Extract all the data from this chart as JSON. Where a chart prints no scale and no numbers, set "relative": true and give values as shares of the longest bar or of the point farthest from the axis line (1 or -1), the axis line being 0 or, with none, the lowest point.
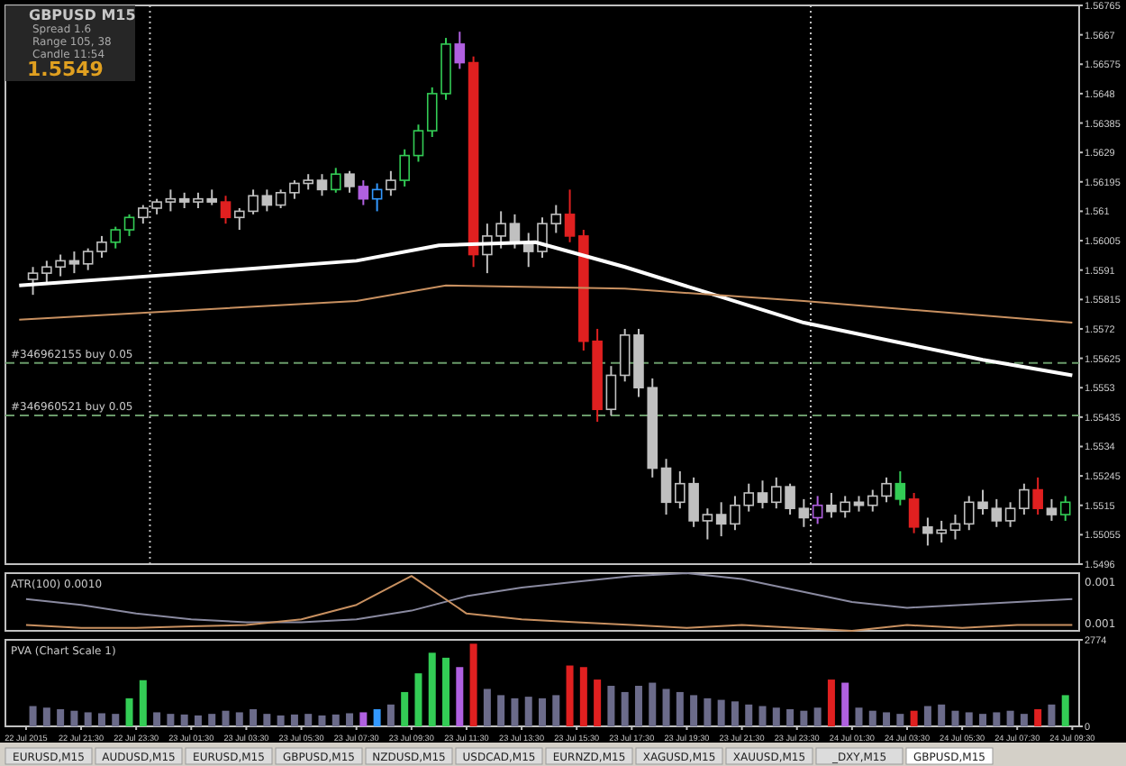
{
  "chart_data": [
    {
      "type": "candlestick",
      "xlim": [
        "2015-07-22T18:45",
        "2015-07-24T09:45"
      ],
      "ylim": [
        1.5496,
        1.56765
      ],
      "yticks": [
        1.56765,
        1.5667,
        1.56575,
        1.5648,
        1.56385,
        1.5629,
        1.56195,
        1.561,
        1.56005,
        1.5591,
        1.55815,
        1.5572,
        1.55625,
        1.5553,
        1.55435,
        1.5534,
        1.55245,
        1.5515,
        1.55055,
        1.5496
      ],
      "tick_labels": "y",
      "x": [
        "2015-07-22T19:45",
        "2015-07-22T20:15",
        "2015-07-22T20:45",
        "2015-07-22T21:15",
        "2015-07-22T21:45",
        "2015-07-22T22:15",
        "2015-07-22T22:45",
        "2015-07-22T23:15",
        "2015-07-22T23:45",
        "2015-07-23T00:15",
        "2015-07-23T00:45",
        "2015-07-23T01:15",
        "2015-07-23T01:45",
        "2015-07-23T02:15",
        "2015-07-23T02:45",
        "2015-07-23T03:15",
        "2015-07-23T03:45",
        "2015-07-23T04:15",
        "2015-07-23T04:45",
        "2015-07-23T05:15",
        "2015-07-23T05:45",
        "2015-07-23T06:15",
        "2015-07-23T06:45",
        "2015-07-23T07:15",
        "2015-07-23T07:45",
        "2015-07-23T08:15",
        "2015-07-23T08:45",
        "2015-07-23T09:15",
        "2015-07-23T09:45",
        "2015-07-23T10:15",
        "2015-07-23T10:45",
        "2015-07-23T11:15",
        "2015-07-23T11:45",
        "2015-07-23T12:15",
        "2015-07-23T12:45",
        "2015-07-23T13:15",
        "2015-07-23T13:45",
        "2015-07-23T14:15",
        "2015-07-23T14:45",
        "2015-07-23T15:15",
        "2015-07-23T15:45",
        "2015-07-23T16:15",
        "2015-07-23T16:45",
        "2015-07-23T17:15",
        "2015-07-23T17:45",
        "2015-07-23T18:15",
        "2015-07-23T18:45",
        "2015-07-23T19:15",
        "2015-07-23T19:45",
        "2015-07-23T20:15",
        "2015-07-23T20:45",
        "2015-07-23T21:15",
        "2015-07-23T21:45",
        "2015-07-23T22:15",
        "2015-07-23T22:45",
        "2015-07-23T23:15",
        "2015-07-23T23:45",
        "2015-07-24T00:15",
        "2015-07-24T00:45",
        "2015-07-24T01:15",
        "2015-07-24T01:45",
        "2015-07-24T02:15",
        "2015-07-24T02:45",
        "2015-07-24T03:15",
        "2015-07-24T03:45",
        "2015-07-24T04:15",
        "2015-07-24T04:45",
        "2015-07-24T05:15",
        "2015-07-24T05:45",
        "2015-07-24T06:15",
        "2015-07-24T06:45",
        "2015-07-24T07:15",
        "2015-07-24T07:45",
        "2015-07-24T08:15",
        "2015-07-24T08:45",
        "2015-07-24T09:15"
      ],
      "ohlc": [
        [
          1.5588,
          1.5592,
          1.5583,
          1.559
        ],
        [
          1.559,
          1.5594,
          1.5587,
          1.5592
        ],
        [
          1.5592,
          1.5596,
          1.5589,
          1.5594
        ],
        [
          1.5594,
          1.5597,
          1.559,
          1.5593
        ],
        [
          1.5593,
          1.5598,
          1.5591,
          1.5597
        ],
        [
          1.5597,
          1.5602,
          1.5595,
          1.56
        ],
        [
          1.56,
          1.5605,
          1.5598,
          1.5604
        ],
        [
          1.5604,
          1.5609,
          1.5602,
          1.5608
        ],
        [
          1.5608,
          1.5612,
          1.5606,
          1.5611
        ],
        [
          1.5611,
          1.5614,
          1.5609,
          1.5613
        ],
        [
          1.5613,
          1.5617,
          1.561,
          1.5614
        ],
        [
          1.5614,
          1.5616,
          1.5611,
          1.5613
        ],
        [
          1.5613,
          1.5616,
          1.5611,
          1.5614
        ],
        [
          1.5614,
          1.5617,
          1.5612,
          1.5613
        ],
        [
          1.5613,
          1.5615,
          1.5606,
          1.5608
        ],
        [
          1.5608,
          1.5611,
          1.5604,
          1.561
        ],
        [
          1.561,
          1.5617,
          1.5609,
          1.5615
        ],
        [
          1.5615,
          1.5617,
          1.561,
          1.5612
        ],
        [
          1.5612,
          1.5617,
          1.5611,
          1.5616
        ],
        [
          1.5616,
          1.562,
          1.5614,
          1.5619
        ],
        [
          1.5619,
          1.5622,
          1.5617,
          1.562
        ],
        [
          1.562,
          1.5622,
          1.5615,
          1.5617
        ],
        [
          1.5617,
          1.5624,
          1.5616,
          1.5622
        ],
        [
          1.5622,
          1.5623,
          1.5616,
          1.5618
        ],
        [
          1.5618,
          1.562,
          1.5612,
          1.5614
        ],
        [
          1.5614,
          1.5619,
          1.561,
          1.5617
        ],
        [
          1.5617,
          1.5623,
          1.5615,
          1.562
        ],
        [
          1.562,
          1.563,
          1.5618,
          1.5628
        ],
        [
          1.5628,
          1.5638,
          1.5626,
          1.5636
        ],
        [
          1.5636,
          1.565,
          1.5634,
          1.5648
        ],
        [
          1.5648,
          1.5666,
          1.5646,
          1.5664
        ],
        [
          1.5664,
          1.5668,
          1.5656,
          1.5658
        ],
        [
          1.5658,
          1.566,
          1.5592,
          1.5596
        ],
        [
          1.5596,
          1.5606,
          1.559,
          1.5602
        ],
        [
          1.5602,
          1.561,
          1.5598,
          1.5606
        ],
        [
          1.5606,
          1.5609,
          1.5598,
          1.56
        ],
        [
          1.56,
          1.5603,
          1.5592,
          1.5597
        ],
        [
          1.5597,
          1.5608,
          1.5595,
          1.5606
        ],
        [
          1.5606,
          1.5612,
          1.5603,
          1.5609
        ],
        [
          1.5609,
          1.5617,
          1.56,
          1.5602
        ],
        [
          1.5602,
          1.5604,
          1.5565,
          1.5568
        ],
        [
          1.5568,
          1.5572,
          1.5542,
          1.5546
        ],
        [
          1.5546,
          1.556,
          1.5544,
          1.5557
        ],
        [
          1.5557,
          1.5572,
          1.5555,
          1.557
        ],
        [
          1.557,
          1.5572,
          1.555,
          1.5553
        ],
        [
          1.5553,
          1.5556,
          1.5524,
          1.5527
        ],
        [
          1.5527,
          1.553,
          1.5512,
          1.5516
        ],
        [
          1.5516,
          1.5526,
          1.5514,
          1.5522
        ],
        [
          1.5522,
          1.5524,
          1.5508,
          1.551
        ],
        [
          1.551,
          1.5514,
          1.5504,
          1.5512
        ],
        [
          1.5512,
          1.5516,
          1.5505,
          1.5509
        ],
        [
          1.5509,
          1.5518,
          1.5507,
          1.5515
        ],
        [
          1.5515,
          1.5522,
          1.5513,
          1.5519
        ],
        [
          1.5519,
          1.5523,
          1.5514,
          1.5516
        ],
        [
          1.5516,
          1.5524,
          1.5514,
          1.5521
        ],
        [
          1.5521,
          1.5522,
          1.5512,
          1.5514
        ],
        [
          1.5514,
          1.5517,
          1.5508,
          1.5511
        ],
        [
          1.5511,
          1.5518,
          1.5509,
          1.5515
        ],
        [
          1.5515,
          1.5519,
          1.5511,
          1.5513
        ],
        [
          1.5513,
          1.5518,
          1.5511,
          1.5516
        ],
        [
          1.5516,
          1.5518,
          1.5513,
          1.5515
        ],
        [
          1.5515,
          1.552,
          1.5513,
          1.5518
        ],
        [
          1.5518,
          1.5524,
          1.5516,
          1.5522
        ],
        [
          1.5522,
          1.5526,
          1.5515,
          1.5517
        ],
        [
          1.5517,
          1.5519,
          1.5506,
          1.5508
        ],
        [
          1.5508,
          1.5511,
          1.5502,
          1.5506
        ],
        [
          1.5506,
          1.551,
          1.5503,
          1.5507
        ],
        [
          1.5507,
          1.5512,
          1.5504,
          1.5509
        ],
        [
          1.5509,
          1.5518,
          1.5507,
          1.5516
        ],
        [
          1.5516,
          1.552,
          1.5512,
          1.5514
        ],
        [
          1.5514,
          1.5517,
          1.5508,
          1.551
        ],
        [
          1.551,
          1.5516,
          1.5508,
          1.5514
        ],
        [
          1.5514,
          1.5522,
          1.5512,
          1.552
        ],
        [
          1.552,
          1.5524,
          1.5512,
          1.5514
        ],
        [
          1.5514,
          1.5517,
          1.551,
          1.5512
        ],
        [
          1.5512,
          1.5518,
          1.551,
          1.5516
        ]
      ],
      "colors": [
        "#c0c0c0",
        "#c0c0c0",
        "#c0c0c0",
        "#c0c0c0",
        "#c0c0c0",
        "#c0c0c0",
        "#33cc55",
        "#33cc55",
        "#c0c0c0",
        "#c0c0c0",
        "#c0c0c0",
        "#c0c0c0",
        "#c0c0c0",
        "#c0c0c0",
        "#e02020",
        "#c0c0c0",
        "#c0c0c0",
        "#c0c0c0",
        "#c0c0c0",
        "#c0c0c0",
        "#c0c0c0",
        "#c0c0c0",
        "#33cc55",
        "#c0c0c0",
        "#b060e0",
        "#3399ff",
        "#c0c0c0",
        "#33cc55",
        "#33cc55",
        "#33cc55",
        "#33cc55",
        "#b060e0",
        "#e02020",
        "#c0c0c0",
        "#c0c0c0",
        "#c0c0c0",
        "#c0c0c0",
        "#c0c0c0",
        "#c0c0c0",
        "#e02020",
        "#e02020",
        "#e02020",
        "#c0c0c0",
        "#c0c0c0",
        "#c0c0c0",
        "#c0c0c0",
        "#c0c0c0",
        "#c0c0c0",
        "#c0c0c0",
        "#c0c0c0",
        "#c0c0c0",
        "#c0c0c0",
        "#c0c0c0",
        "#c0c0c0",
        "#c0c0c0",
        "#c0c0c0",
        "#c0c0c0",
        "#b060e0",
        "#c0c0c0",
        "#c0c0c0",
        "#c0c0c0",
        "#c0c0c0",
        "#c0c0c0",
        "#33cc55",
        "#e02020",
        "#c0c0c0",
        "#c0c0c0",
        "#c0c0c0",
        "#c0c0c0",
        "#c0c0c0",
        "#c0c0c0",
        "#c0c0c0",
        "#c0c0c0",
        "#e02020",
        "#c0c0c0",
        "#33cc55"
      ],
      "series": [
        {
          "type": "line",
          "color": "#ffffff",
          "x": [
            "2015-07-22T19:15",
            "2015-07-23T01:30",
            "2015-07-23T07:30",
            "2015-07-23T10:30",
            "2015-07-23T14:00",
            "2015-07-23T17:15",
            "2015-07-23T20:30",
            "2015-07-23T23:45",
            "2015-07-24T03:00",
            "2015-07-24T06:15",
            "2015-07-24T09:30"
          ],
          "values": [
            1.5586,
            1.559,
            1.5594,
            1.5599,
            1.56,
            1.5592,
            1.5583,
            1.5574,
            1.5568,
            1.5562,
            1.5557
          ]
        },
        {
          "type": "line",
          "color": "#c89060",
          "x": [
            "2015-07-22T19:15",
            "2015-07-23T07:30",
            "2015-07-23T10:45",
            "2015-07-23T17:15",
            "2015-07-23T23:45",
            "2015-07-24T09:30"
          ],
          "values": [
            1.5575,
            1.5581,
            1.5586,
            1.5585,
            1.5581,
            1.5574
          ]
        }
      ],
      "ref_lines": [
        {
          "axis": "y",
          "value": 1.5561,
          "label": "#346962155 buy 0.05",
          "color": "#6a9a6a",
          "line_style": "dashed"
        },
        {
          "axis": "y",
          "value": 1.5544,
          "label": "#346960521 buy 0.05",
          "color": "#6a9a6a",
          "line_style": "dashed"
        },
        {
          "axis": "x",
          "value": "2015-07-23T00:00",
          "color": "#c0c0c0",
          "line_style": "dotted"
        },
        {
          "axis": "x",
          "value": "2015-07-24T00:00",
          "color": "#c0c0c0",
          "line_style": "dotted"
        }
      ],
      "annotations": [
        "GBPUSD  M15",
        "Spread  1.6",
        "Range   105, 38",
        "Candle  11:54",
        "1.5549"
      ]
    },
    {
      "type": "line",
      "relative": true,
      "title": "ATR(100) 0.0010",
      "xlim": [
        "2015-07-22T18:45",
        "2015-07-24T09:45"
      ],
      "tick_labels": false,
      "series": [
        {
          "color": "#8a8aa0",
          "x": [
            "2015-07-22T19:30",
            "2015-07-22T21:30",
            "2015-07-22T23:30",
            "2015-07-23T01:30",
            "2015-07-23T03:30",
            "2015-07-23T05:30",
            "2015-07-23T07:30",
            "2015-07-23T09:30",
            "2015-07-23T11:30",
            "2015-07-23T13:30",
            "2015-07-23T15:30",
            "2015-07-23T17:30",
            "2015-07-23T19:30",
            "2015-07-23T21:30",
            "2015-07-23T23:30",
            "2015-07-24T01:30",
            "2015-07-24T03:30",
            "2015-07-24T05:30",
            "2015-07-24T07:30",
            "2015-07-24T09:30"
          ],
          "values": [
            0.55,
            0.45,
            0.3,
            0.2,
            0.15,
            0.15,
            0.2,
            0.35,
            0.6,
            0.75,
            0.85,
            0.95,
            1,
            0.9,
            0.7,
            0.5,
            0.4,
            0.45,
            0.5,
            0.55
          ]
        },
        {
          "color": "#c89060",
          "x": [
            "2015-07-22T19:30",
            "2015-07-22T21:30",
            "2015-07-22T23:30",
            "2015-07-23T01:30",
            "2015-07-23T03:30",
            "2015-07-23T05:30",
            "2015-07-23T07:30",
            "2015-07-23T09:30",
            "2015-07-23T11:30",
            "2015-07-23T13:30",
            "2015-07-23T15:30",
            "2015-07-23T17:30",
            "2015-07-23T19:30",
            "2015-07-23T21:30",
            "2015-07-23T23:30",
            "2015-07-24T01:30",
            "2015-07-24T03:30",
            "2015-07-24T05:30",
            "2015-07-24T07:30",
            "2015-07-24T09:30"
          ],
          "values": [
            0.1,
            0.05,
            0.05,
            0.08,
            0.1,
            0.2,
            0.45,
            0.95,
            0.3,
            0.2,
            0.15,
            0.1,
            0.05,
            0.1,
            0.05,
            0,
            0.1,
            0.05,
            0.1,
            0.1
          ]
        }
      ],
      "annotations": [
        "0.001",
        "0.001"
      ]
    },
    {
      "type": "bar",
      "title": "PVA  (Chart Scale 1)",
      "xlim": [
        "2015-07-22T18:45",
        "2015-07-24T09:45"
      ],
      "ylim": [
        0,
        2774
      ],
      "yticks": [
        0,
        2774
      ],
      "xticks": [
        {
          "value": "2015-07-22T19:30",
          "label": "22 Jul 2015"
        },
        {
          "value": "2015-07-22T21:30",
          "label": "22 Jul 21:30"
        },
        {
          "value": "2015-07-22T23:30",
          "label": "22 Jul 23:30"
        },
        {
          "value": "2015-07-23T01:30",
          "label": "23 Jul 01:30"
        },
        {
          "value": "2015-07-23T03:30",
          "label": "23 Jul 03:30"
        },
        {
          "value": "2015-07-23T05:30",
          "label": "23 Jul 05:30"
        },
        {
          "value": "2015-07-23T07:30",
          "label": "23 Jul 07:30"
        },
        {
          "value": "2015-07-23T09:30",
          "label": "23 Jul 09:30"
        },
        {
          "value": "2015-07-23T11:30",
          "label": "23 Jul 11:30"
        },
        {
          "value": "2015-07-23T13:30",
          "label": "23 Jul 13:30"
        },
        {
          "value": "2015-07-23T15:30",
          "label": "23 Jul 15:30"
        },
        {
          "value": "2015-07-23T17:30",
          "label": "23 Jul 17:30"
        },
        {
          "value": "2015-07-23T19:30",
          "label": "23 Jul 19:30"
        },
        {
          "value": "2015-07-23T21:30",
          "label": "23 Jul 21:30"
        },
        {
          "value": "2015-07-23T23:30",
          "label": "23 Jul 23:30"
        },
        {
          "value": "2015-07-24T01:30",
          "label": "24 Jul 01:30"
        },
        {
          "value": "2015-07-24T03:30",
          "label": "24 Jul 03:30"
        },
        {
          "value": "2015-07-24T05:30",
          "label": "24 Jul 05:30"
        },
        {
          "value": "2015-07-24T07:30",
          "label": "24 Jul 07:30"
        },
        {
          "value": "2015-07-24T09:30",
          "label": "24 Jul 09:30"
        }
      ],
      "x": [
        "2015-07-22T19:45",
        "2015-07-22T20:15",
        "2015-07-22T20:45",
        "2015-07-22T21:15",
        "2015-07-22T21:45",
        "2015-07-22T22:15",
        "2015-07-22T22:45",
        "2015-07-22T23:15",
        "2015-07-22T23:45",
        "2015-07-23T00:15",
        "2015-07-23T00:45",
        "2015-07-23T01:15",
        "2015-07-23T01:45",
        "2015-07-23T02:15",
        "2015-07-23T02:45",
        "2015-07-23T03:15",
        "2015-07-23T03:45",
        "2015-07-23T04:15",
        "2015-07-23T04:45",
        "2015-07-23T05:15",
        "2015-07-23T05:45",
        "2015-07-23T06:15",
        "2015-07-23T06:45",
        "2015-07-23T07:15",
        "2015-07-23T07:45",
        "2015-07-23T08:15",
        "2015-07-23T08:45",
        "2015-07-23T09:15",
        "2015-07-23T09:45",
        "2015-07-23T10:15",
        "2015-07-23T10:45",
        "2015-07-23T11:15",
        "2015-07-23T11:45",
        "2015-07-23T12:15",
        "2015-07-23T12:45",
        "2015-07-23T13:15",
        "2015-07-23T13:45",
        "2015-07-23T14:15",
        "2015-07-23T14:45",
        "2015-07-23T15:15",
        "2015-07-23T15:45",
        "2015-07-23T16:15",
        "2015-07-23T16:45",
        "2015-07-23T17:15",
        "2015-07-23T17:45",
        "2015-07-23T18:15",
        "2015-07-23T18:45",
        "2015-07-23T19:15",
        "2015-07-23T19:45",
        "2015-07-23T20:15",
        "2015-07-23T20:45",
        "2015-07-23T21:15",
        "2015-07-23T21:45",
        "2015-07-23T22:15",
        "2015-07-23T22:45",
        "2015-07-23T23:15",
        "2015-07-23T23:45",
        "2015-07-24T00:15",
        "2015-07-24T00:45",
        "2015-07-24T01:15",
        "2015-07-24T01:45",
        "2015-07-24T02:15",
        "2015-07-24T02:45",
        "2015-07-24T03:15",
        "2015-07-24T03:45",
        "2015-07-24T04:15",
        "2015-07-24T04:45",
        "2015-07-24T05:15",
        "2015-07-24T05:45",
        "2015-07-24T06:15",
        "2015-07-24T06:45",
        "2015-07-24T07:15",
        "2015-07-24T07:45",
        "2015-07-24T08:15",
        "2015-07-24T08:45",
        "2015-07-24T09:15"
      ],
      "values": [
        650,
        600,
        550,
        500,
        450,
        420,
        400,
        900,
        1480,
        450,
        400,
        380,
        350,
        400,
        500,
        450,
        550,
        400,
        350,
        380,
        400,
        350,
        380,
        420,
        450,
        550,
        700,
        1100,
        1700,
        2360,
        2200,
        1900,
        2650,
        1200,
        1000,
        900,
        950,
        900,
        1000,
        1950,
        1900,
        1500,
        1300,
        1100,
        1300,
        1400,
        1200,
        1100,
        1000,
        900,
        850,
        800,
        700,
        650,
        600,
        550,
        500,
        600,
        1500,
        1400,
        600,
        500,
        450,
        400,
        500,
        650,
        700,
        500,
        450,
        400,
        450,
        500,
        400,
        550,
        700,
        1000
      ],
      "colors": [
        "#6b6b8a",
        "#6b6b8a",
        "#6b6b8a",
        "#6b6b8a",
        "#6b6b8a",
        "#6b6b8a",
        "#6b6b8a",
        "#33cc55",
        "#33cc55",
        "#6b6b8a",
        "#6b6b8a",
        "#6b6b8a",
        "#6b6b8a",
        "#6b6b8a",
        "#6b6b8a",
        "#6b6b8a",
        "#6b6b8a",
        "#6b6b8a",
        "#6b6b8a",
        "#6b6b8a",
        "#6b6b8a",
        "#6b6b8a",
        "#6b6b8a",
        "#6b6b8a",
        "#b060e0",
        "#3399ff",
        "#6b6b8a",
        "#33cc55",
        "#33cc55",
        "#33cc55",
        "#33cc55",
        "#b060e0",
        "#e02020",
        "#6b6b8a",
        "#6b6b8a",
        "#6b6b8a",
        "#6b6b8a",
        "#6b6b8a",
        "#6b6b8a",
        "#e02020",
        "#e02020",
        "#e02020",
        "#6b6b8a",
        "#6b6b8a",
        "#6b6b8a",
        "#6b6b8a",
        "#6b6b8a",
        "#6b6b8a",
        "#6b6b8a",
        "#6b6b8a",
        "#6b6b8a",
        "#6b6b8a",
        "#6b6b8a",
        "#6b6b8a",
        "#6b6b8a",
        "#6b6b8a",
        "#6b6b8a",
        "#6b6b8a",
        "#e02020",
        "#b060e0",
        "#6b6b8a",
        "#6b6b8a",
        "#6b6b8a",
        "#6b6b8a",
        "#e02020",
        "#6b6b8a",
        "#6b6b8a",
        "#6b6b8a",
        "#6b6b8a",
        "#6b6b8a",
        "#6b6b8a",
        "#6b6b8a",
        "#6b6b8a",
        "#e02020",
        "#6b6b8a",
        "#33cc55"
      ],
      "annotations": [
        "EURUSD,M15",
        "AUDUSD,M15",
        "EURUSD,M15",
        "GBPUSD,M15",
        "NZDUSD,M15",
        "USDCAD,M15",
        "EURNZD,M15",
        "XAGUSD,M15",
        "XAUUSD,M15",
        "_DXY,M15",
        "GBPUSD,M15"
      ]
    }
  ]
}
